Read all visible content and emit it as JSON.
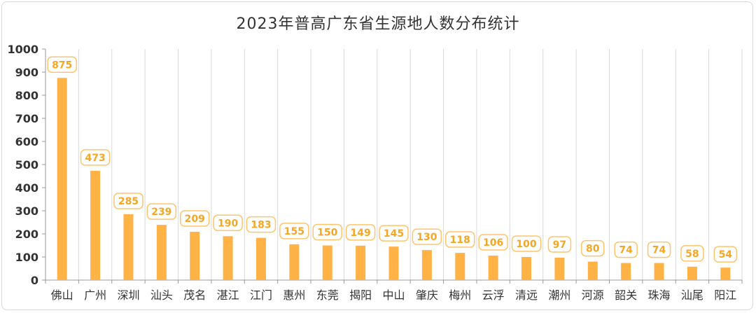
{
  "chart_data": {
    "type": "bar",
    "title": "2023年普高广东省生源地人数分布统计",
    "xlabel": "",
    "ylabel": "",
    "ylim": [
      0,
      1000
    ],
    "yticks": [
      0,
      100,
      200,
      300,
      400,
      500,
      600,
      700,
      800,
      900,
      1000
    ],
    "grid": "vertical",
    "categories": [
      "佛山",
      "广州",
      "深圳",
      "汕头",
      "茂名",
      "湛江",
      "江门",
      "惠州",
      "东莞",
      "揭阳",
      "中山",
      "肇庆",
      "梅州",
      "云浮",
      "清远",
      "潮州",
      "河源",
      "韶关",
      "珠海",
      "汕尾",
      "阳江"
    ],
    "values": [
      875,
      473,
      285,
      239,
      209,
      190,
      183,
      155,
      150,
      149,
      145,
      130,
      118,
      106,
      100,
      97,
      80,
      74,
      74,
      58,
      54
    ],
    "colors": {
      "bar": "#ffb347",
      "label_border": "#ffc46b",
      "label_text": "#f5a623",
      "grid": "#d9d9d9",
      "axis": "#999999"
    }
  }
}
